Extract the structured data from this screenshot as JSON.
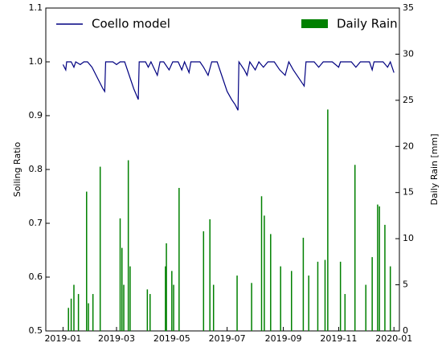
{
  "chart_data": {
    "type": "line",
    "y_label": "Soiling Ratio",
    "y2_label": "Daily Rain [mm]",
    "xlim": [
      "2018-12-13",
      "2020-01-07"
    ],
    "xticks": [
      {
        "value": "2019-01-01",
        "label": "2019-01"
      },
      {
        "value": "2019-03-01",
        "label": "2019-03"
      },
      {
        "value": "2019-05-01",
        "label": "2019-05"
      },
      {
        "value": "2019-07-01",
        "label": "2019-07"
      },
      {
        "value": "2019-09-01",
        "label": "2019-09"
      },
      {
        "value": "2019-11-01",
        "label": "2019-11"
      },
      {
        "value": "2020-01-01",
        "label": "2020-01"
      }
    ],
    "ylim": [
      0.5,
      1.1
    ],
    "yticks": [
      0.5,
      0.6,
      0.7,
      0.8,
      0.9,
      {
        "value": 1,
        "label": "1.0"
      },
      1.1
    ],
    "y2lim": [
      0,
      35
    ],
    "y2ticks": [
      0,
      5,
      10,
      15,
      20,
      25,
      30,
      35
    ],
    "grid": false,
    "series": [
      {
        "name": "Coello model",
        "type": "line",
        "color": "#000080",
        "x": [
          "2019-01-01",
          "2019-01-04",
          "2019-01-05",
          "2019-01-10",
          "2019-01-13",
          "2019-01-15",
          "2019-01-20",
          "2019-01-24",
          "2019-01-28",
          "2019-02-02",
          "2019-02-08",
          "2019-02-14",
          "2019-02-16",
          "2019-02-17",
          "2019-02-25",
          "2019-03-01",
          "2019-03-05",
          "2019-03-10",
          "2019-03-15",
          "2019-03-20",
          "2019-03-25",
          "2019-03-26",
          "2019-04-02",
          "2019-04-05",
          "2019-04-08",
          "2019-04-15",
          "2019-04-18",
          "2019-04-22",
          "2019-04-28",
          "2019-05-02",
          "2019-05-08",
          "2019-05-12",
          "2019-05-15",
          "2019-05-20",
          "2019-05-22",
          "2019-06-01",
          "2019-06-05",
          "2019-06-10",
          "2019-06-14",
          "2019-06-20",
          "2019-06-25",
          "2019-07-01",
          "2019-07-06",
          "2019-07-10",
          "2019-07-13",
          "2019-07-14",
          "2019-07-20",
          "2019-07-23",
          "2019-07-26",
          "2019-08-01",
          "2019-08-05",
          "2019-08-10",
          "2019-08-15",
          "2019-08-22",
          "2019-08-28",
          "2019-09-03",
          "2019-09-07",
          "2019-09-12",
          "2019-09-18",
          "2019-09-24",
          "2019-09-26",
          "2019-10-05",
          "2019-10-10",
          "2019-10-15",
          "2019-10-25",
          "2019-11-01",
          "2019-11-03",
          "2019-11-15",
          "2019-11-20",
          "2019-11-25",
          "2019-12-05",
          "2019-12-08",
          "2019-12-10",
          "2019-12-20",
          "2019-12-25",
          "2019-12-28",
          "2019-12-31",
          "2020-01-01"
        ],
        "values": [
          0.995,
          0.985,
          1.0,
          1.0,
          0.99,
          1.0,
          0.995,
          1.0,
          1.0,
          0.99,
          0.97,
          0.95,
          0.945,
          1.0,
          1.0,
          0.995,
          1.0,
          1.0,
          0.975,
          0.95,
          0.93,
          1.0,
          1.0,
          0.99,
          1.0,
          0.975,
          1.0,
          1.0,
          0.985,
          1.0,
          1.0,
          0.985,
          1.0,
          0.98,
          1.0,
          1.0,
          0.99,
          0.975,
          1.0,
          1.0,
          0.975,
          0.945,
          0.93,
          0.92,
          0.91,
          1.0,
          0.985,
          0.975,
          1.0,
          0.985,
          1.0,
          0.99,
          1.0,
          1.0,
          0.985,
          0.975,
          1.0,
          0.985,
          0.97,
          0.955,
          1.0,
          1.0,
          0.99,
          1.0,
          1.0,
          0.99,
          1.0,
          1.0,
          0.99,
          1.0,
          1.0,
          0.985,
          1.0,
          1.0,
          0.99,
          1.0,
          0.985,
          0.98
        ]
      },
      {
        "name": "Daily Rain",
        "type": "bar",
        "color": "#008000",
        "axis": "y2",
        "x": [
          "2019-01-07",
          "2019-01-10",
          "2019-01-13",
          "2019-01-18",
          "2019-01-27",
          "2019-01-29",
          "2019-02-03",
          "2019-02-11",
          "2019-03-05",
          "2019-03-07",
          "2019-03-09",
          "2019-03-14",
          "2019-03-16",
          "2019-04-04",
          "2019-04-07",
          "2019-04-24",
          "2019-04-25",
          "2019-05-01",
          "2019-05-03",
          "2019-05-09",
          "2019-06-05",
          "2019-06-12",
          "2019-06-16",
          "2019-07-12",
          "2019-07-28",
          "2019-08-08",
          "2019-08-11",
          "2019-08-18",
          "2019-08-29",
          "2019-09-10",
          "2019-09-23",
          "2019-09-29",
          "2019-10-09",
          "2019-10-17",
          "2019-10-20",
          "2019-11-03",
          "2019-11-08",
          "2019-11-19",
          "2019-12-01",
          "2019-12-08",
          "2019-12-14",
          "2019-12-16",
          "2019-12-22",
          "2019-12-28"
        ],
        "values": [
          2.5,
          3.5,
          5,
          4,
          15.1,
          3,
          4,
          17.8,
          12.2,
          9,
          5,
          18.5,
          7,
          4.5,
          4,
          7,
          9.5,
          6.5,
          5,
          15.5,
          10.8,
          12.1,
          5,
          6,
          5.2,
          14.6,
          12.5,
          10.5,
          7,
          6.5,
          10.1,
          6,
          7.5,
          7.7,
          24,
          7.5,
          4,
          18,
          5,
          8,
          13.7,
          13.5,
          11.5,
          7
        ]
      }
    ],
    "legend": "top"
  }
}
